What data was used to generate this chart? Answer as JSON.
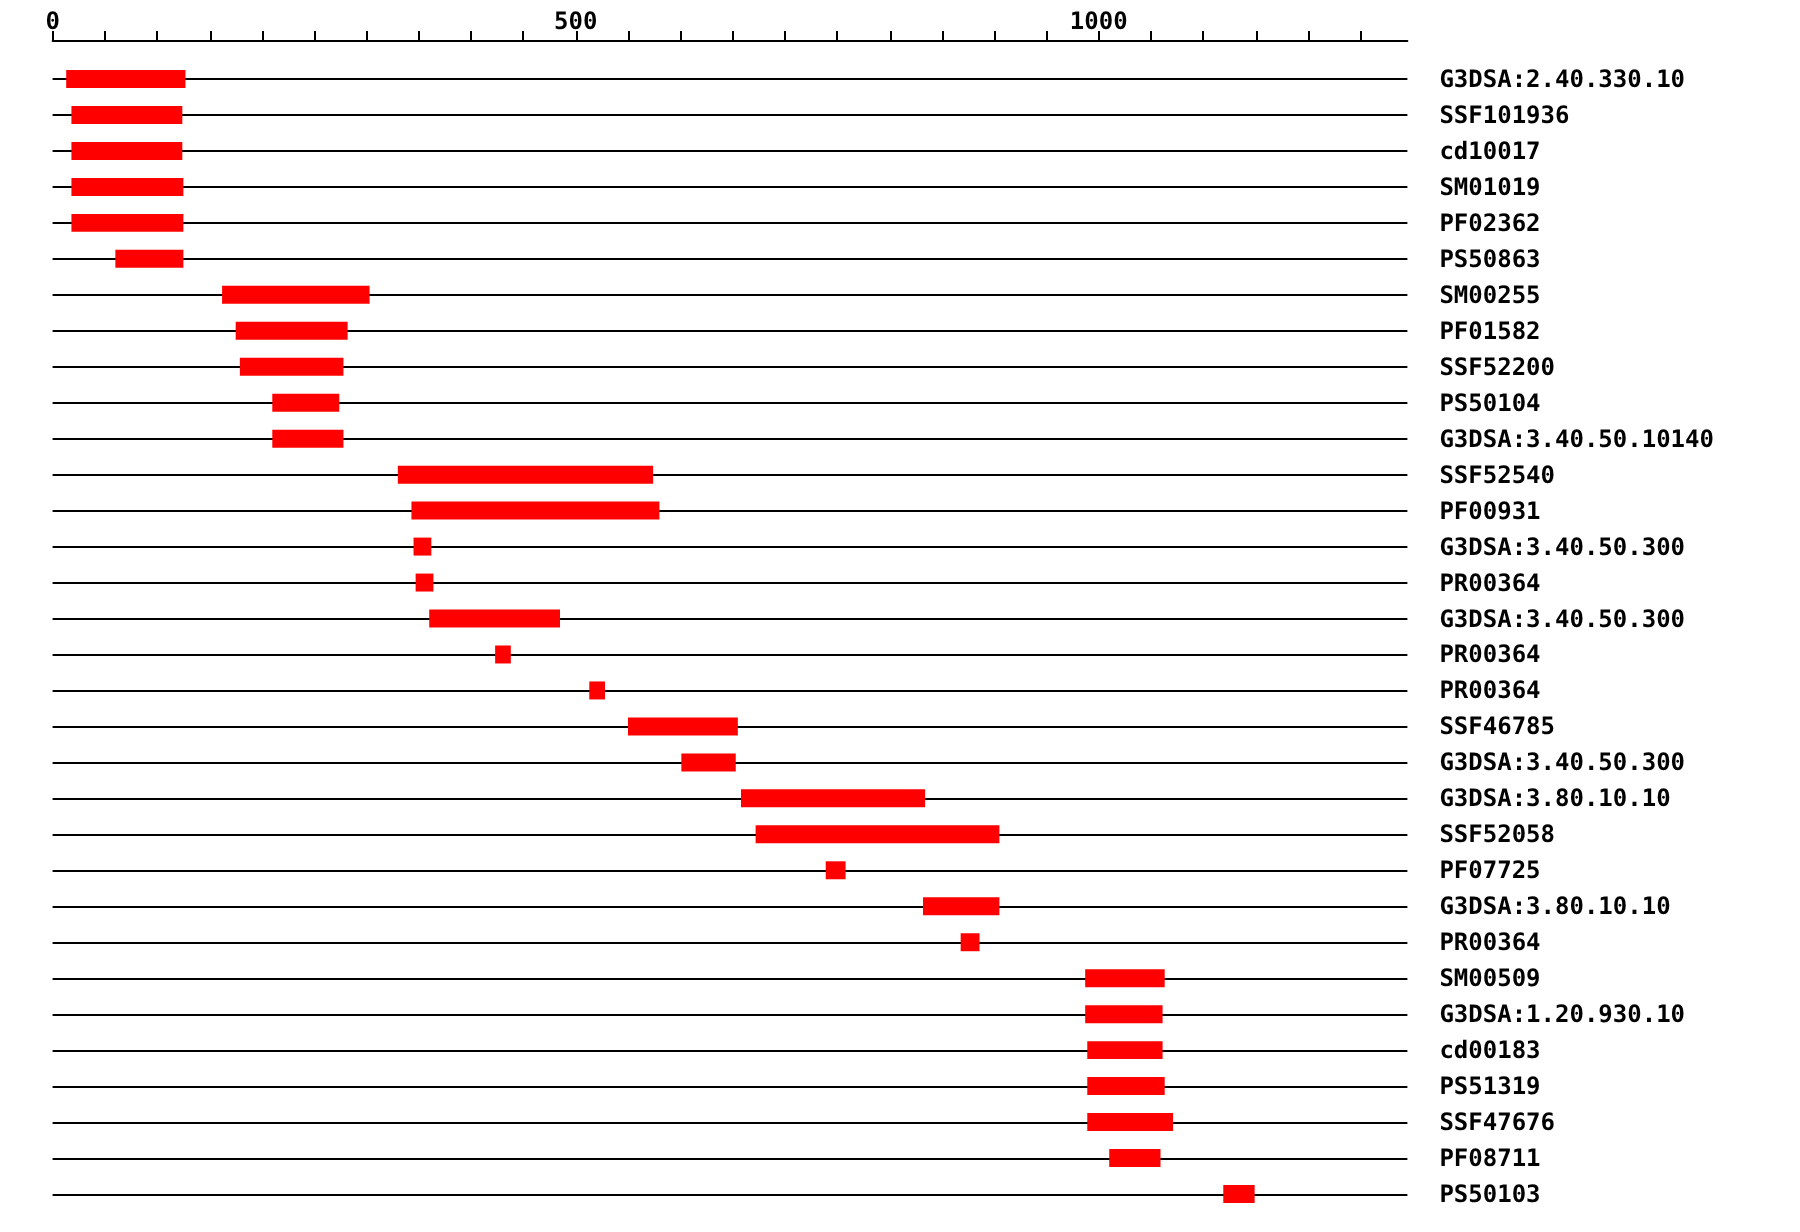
{
  "chart_data": {
    "type": "bar",
    "orientation": "horizontal",
    "categories": [
      "G3DSA:2.40.330.10",
      "SSF101936",
      "cd10017",
      "SM01019",
      "PF02362",
      "PS50863",
      "SM00255",
      "PF01582",
      "SSF52200",
      "PS50104",
      "G3DSA:3.40.50.10140",
      "SSF52540",
      "PF00931",
      "G3DSA:3.40.50.300",
      "PR00364",
      "G3DSA:3.40.50.300",
      "PR00364",
      "PR00364",
      "SSF46785",
      "G3DSA:3.40.50.300",
      "G3DSA:3.80.10.10",
      "SSF52058",
      "PF07725",
      "G3DSA:3.80.10.10",
      "PR00364",
      "SM00509",
      "G3DSA:1.20.930.10",
      "cd00183",
      "PS51319",
      "SSF47676",
      "PF08711",
      "PS50103"
    ],
    "base": [
      13,
      18,
      18,
      18,
      18,
      60,
      162,
      175,
      179,
      210,
      210,
      330,
      343,
      345,
      347,
      360,
      423,
      513,
      550,
      601,
      658,
      672,
      739,
      832,
      868,
      987,
      987,
      989,
      989,
      989,
      1010,
      1119
    ],
    "values": [
      114,
      106,
      106,
      107,
      107,
      65,
      141,
      107,
      99,
      64,
      68,
      244,
      237,
      17,
      17,
      125,
      15,
      15,
      105,
      52,
      176,
      233,
      19,
      73,
      18,
      76,
      74,
      72,
      74,
      82,
      49,
      30
    ],
    "color": "#ff0000",
    "xlim": [
      0,
      1295
    ],
    "xticks": [
      0,
      {
        "value": 50,
        "label": null
      },
      {
        "value": 100,
        "label": null
      },
      {
        "value": 150,
        "label": null
      },
      {
        "value": 200,
        "label": null
      },
      {
        "value": 250,
        "label": null
      },
      {
        "value": 300,
        "label": null
      },
      {
        "value": 350,
        "label": null
      },
      {
        "value": 400,
        "label": null
      },
      {
        "value": 450,
        "label": null
      },
      500,
      {
        "value": 550,
        "label": null
      },
      {
        "value": 600,
        "label": null
      },
      {
        "value": 650,
        "label": null
      },
      {
        "value": 700,
        "label": null
      },
      {
        "value": 750,
        "label": null
      },
      {
        "value": 800,
        "label": null
      },
      {
        "value": 850,
        "label": null
      },
      {
        "value": 900,
        "label": null
      },
      {
        "value": 950,
        "label": null
      },
      1000,
      {
        "value": 1050,
        "label": null
      },
      {
        "value": 1100,
        "label": null
      },
      {
        "value": 1150,
        "label": null
      },
      {
        "value": 1200,
        "label": null
      },
      {
        "value": 1250,
        "label": null
      }
    ],
    "grid": "y"
  }
}
